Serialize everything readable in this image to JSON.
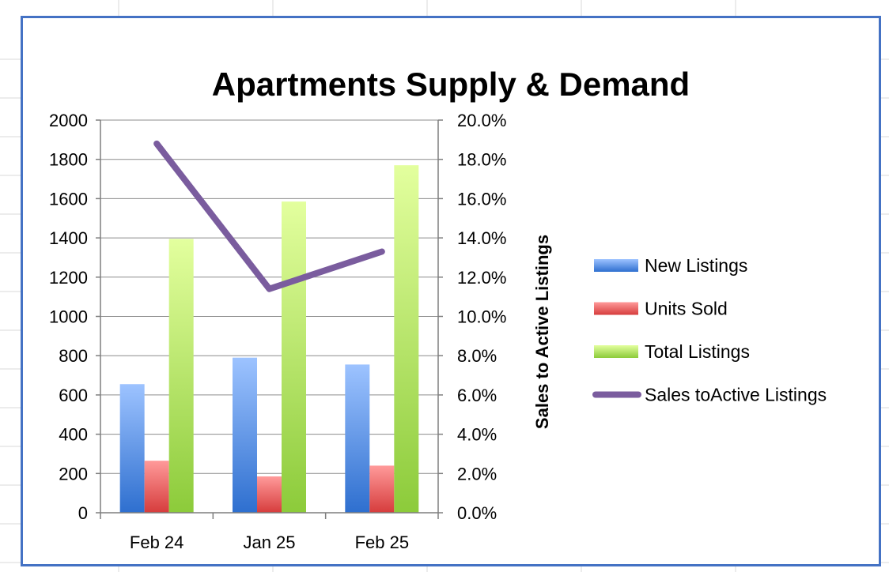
{
  "chart_data": {
    "type": "bar",
    "title": "Apartments Supply & Demand",
    "categories": [
      "Feb 24",
      "Jan 25",
      "Feb 25"
    ],
    "series": [
      {
        "name": "New Listings",
        "kind": "bar",
        "axis": "left",
        "values": [
          655,
          790,
          755
        ],
        "color": "#4f86d9"
      },
      {
        "name": "Units Sold",
        "kind": "bar",
        "axis": "left",
        "values": [
          265,
          185,
          240
        ],
        "color": "#e85a5a"
      },
      {
        "name": "Total Listings",
        "kind": "bar",
        "axis": "left",
        "values": [
          1395,
          1585,
          1770
        ],
        "color": "#9fd84a"
      },
      {
        "name": "Sales toActive Listings",
        "kind": "line",
        "axis": "right",
        "values": [
          18.8,
          11.4,
          13.3
        ],
        "color": "#7a5c9e"
      }
    ],
    "y_left": {
      "min": 0,
      "max": 2000,
      "step": 200,
      "ticks": [
        "0",
        "200",
        "400",
        "600",
        "800",
        "1000",
        "1200",
        "1400",
        "1600",
        "1800",
        "2000"
      ]
    },
    "y_right": {
      "min": 0,
      "max": 20,
      "step": 2,
      "label": "Sales to Active Listings",
      "ticks": [
        "0.0%",
        "2.0%",
        "4.0%",
        "6.0%",
        "8.0%",
        "10.0%",
        "12.0%",
        "14.0%",
        "16.0%",
        "18.0%",
        "20.0%"
      ]
    },
    "grid": true,
    "legend": "right"
  }
}
